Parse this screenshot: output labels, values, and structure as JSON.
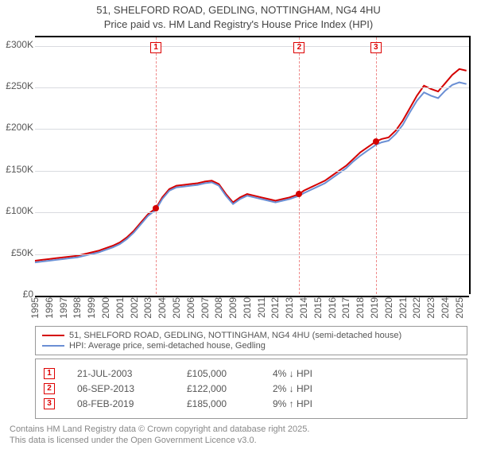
{
  "title_line1": "51, SHELFORD ROAD, GEDLING, NOTTINGHAM, NG4 4HU",
  "title_line2": "Price paid vs. HM Land Registry's House Price Index (HPI)",
  "chart": {
    "type": "line",
    "background_color": "#ffffff",
    "grid_color": "#d9dbe0",
    "axis_color": "#000000",
    "x": {
      "min": 1995,
      "max": 2025.8,
      "ticks": [
        1995,
        1996,
        1997,
        1998,
        1999,
        2000,
        2001,
        2002,
        2003,
        2004,
        2005,
        2006,
        2007,
        2008,
        2009,
        2010,
        2011,
        2012,
        2013,
        2014,
        2015,
        2016,
        2017,
        2018,
        2019,
        2020,
        2021,
        2022,
        2023,
        2024,
        2025
      ]
    },
    "y": {
      "min": 0,
      "max": 310000,
      "ticks": [
        0,
        50000,
        100000,
        150000,
        200000,
        250000,
        300000
      ],
      "tick_labels": [
        "£0",
        "£50K",
        "£100K",
        "£150K",
        "£200K",
        "£250K",
        "£300K"
      ]
    },
    "series": [
      {
        "id": "price_paid",
        "label": "51, SHELFORD ROAD, GEDLING, NOTTINGHAM, NG4 4HU (semi-detached house)",
        "color": "#d40000",
        "line_width": 2,
        "points": [
          [
            1995,
            42000
          ],
          [
            1995.5,
            43000
          ],
          [
            1996,
            44000
          ],
          [
            1996.5,
            45000
          ],
          [
            1997,
            46000
          ],
          [
            1997.5,
            47000
          ],
          [
            1998,
            48000
          ],
          [
            1998.5,
            50000
          ],
          [
            1999,
            52000
          ],
          [
            1999.5,
            54000
          ],
          [
            2000,
            57000
          ],
          [
            2000.5,
            60000
          ],
          [
            2001,
            64000
          ],
          [
            2001.5,
            70000
          ],
          [
            2002,
            78000
          ],
          [
            2002.5,
            88000
          ],
          [
            2003,
            98000
          ],
          [
            2003.55,
            105000
          ],
          [
            2004,
            118000
          ],
          [
            2004.5,
            128000
          ],
          [
            2005,
            132000
          ],
          [
            2005.5,
            133000
          ],
          [
            2006,
            134000
          ],
          [
            2006.5,
            135000
          ],
          [
            2007,
            137000
          ],
          [
            2007.5,
            138000
          ],
          [
            2008,
            134000
          ],
          [
            2008.5,
            122000
          ],
          [
            2009,
            112000
          ],
          [
            2009.5,
            118000
          ],
          [
            2010,
            122000
          ],
          [
            2010.5,
            120000
          ],
          [
            2011,
            118000
          ],
          [
            2011.5,
            116000
          ],
          [
            2012,
            114000
          ],
          [
            2012.5,
            116000
          ],
          [
            2013,
            118000
          ],
          [
            2013.68,
            122000
          ],
          [
            2014,
            126000
          ],
          [
            2014.5,
            130000
          ],
          [
            2015,
            134000
          ],
          [
            2015.5,
            138000
          ],
          [
            2016,
            144000
          ],
          [
            2016.5,
            150000
          ],
          [
            2017,
            156000
          ],
          [
            2017.5,
            164000
          ],
          [
            2018,
            172000
          ],
          [
            2018.5,
            178000
          ],
          [
            2019.1,
            185000
          ],
          [
            2019.5,
            188000
          ],
          [
            2020,
            190000
          ],
          [
            2020.5,
            198000
          ],
          [
            2021,
            210000
          ],
          [
            2021.5,
            225000
          ],
          [
            2022,
            240000
          ],
          [
            2022.5,
            252000
          ],
          [
            2023,
            248000
          ],
          [
            2023.5,
            245000
          ],
          [
            2024,
            255000
          ],
          [
            2024.5,
            265000
          ],
          [
            2025,
            272000
          ],
          [
            2025.5,
            270000
          ]
        ]
      },
      {
        "id": "hpi",
        "label": "HPI: Average price, semi-detached house, Gedling",
        "color": "#6b8fd4",
        "line_width": 2,
        "points": [
          [
            1995,
            40000
          ],
          [
            1995.5,
            41000
          ],
          [
            1996,
            42000
          ],
          [
            1996.5,
            43000
          ],
          [
            1997,
            44000
          ],
          [
            1997.5,
            45000
          ],
          [
            1998,
            46000
          ],
          [
            1998.5,
            48000
          ],
          [
            1999,
            50000
          ],
          [
            1999.5,
            52000
          ],
          [
            2000,
            55000
          ],
          [
            2000.5,
            58000
          ],
          [
            2001,
            62000
          ],
          [
            2001.5,
            68000
          ],
          [
            2002,
            76000
          ],
          [
            2002.5,
            86000
          ],
          [
            2003,
            96000
          ],
          [
            2003.55,
            103000
          ],
          [
            2004,
            116000
          ],
          [
            2004.5,
            126000
          ],
          [
            2005,
            130000
          ],
          [
            2005.5,
            131000
          ],
          [
            2006,
            132000
          ],
          [
            2006.5,
            133000
          ],
          [
            2007,
            135000
          ],
          [
            2007.5,
            136000
          ],
          [
            2008,
            132000
          ],
          [
            2008.5,
            120000
          ],
          [
            2009,
            110000
          ],
          [
            2009.5,
            116000
          ],
          [
            2010,
            120000
          ],
          [
            2010.5,
            118000
          ],
          [
            2011,
            116000
          ],
          [
            2011.5,
            114000
          ],
          [
            2012,
            112000
          ],
          [
            2012.5,
            114000
          ],
          [
            2013,
            116000
          ],
          [
            2013.68,
            120000
          ],
          [
            2014,
            123000
          ],
          [
            2014.5,
            127000
          ],
          [
            2015,
            131000
          ],
          [
            2015.5,
            135000
          ],
          [
            2016,
            141000
          ],
          [
            2016.5,
            147000
          ],
          [
            2017,
            153000
          ],
          [
            2017.5,
            161000
          ],
          [
            2018,
            168000
          ],
          [
            2018.5,
            174000
          ],
          [
            2019.1,
            181000
          ],
          [
            2019.5,
            184000
          ],
          [
            2020,
            186000
          ],
          [
            2020.5,
            194000
          ],
          [
            2021,
            205000
          ],
          [
            2021.5,
            220000
          ],
          [
            2022,
            234000
          ],
          [
            2022.5,
            244000
          ],
          [
            2023,
            240000
          ],
          [
            2023.5,
            237000
          ],
          [
            2024,
            246000
          ],
          [
            2024.5,
            253000
          ],
          [
            2025,
            256000
          ],
          [
            2025.5,
            254000
          ]
        ]
      }
    ],
    "markers": [
      {
        "n": "1",
        "x": 2003.55,
        "date": "21-JUL-2003",
        "price": "£105,000",
        "pct": "4% ↓ HPI",
        "dot_y": 105000
      },
      {
        "n": "2",
        "x": 2013.68,
        "date": "06-SEP-2013",
        "price": "£122,000",
        "pct": "2% ↓ HPI",
        "dot_y": 122000
      },
      {
        "n": "3",
        "x": 2019.1,
        "date": "08-FEB-2019",
        "price": "£185,000",
        "pct": "9% ↑ HPI",
        "dot_y": 185000
      }
    ],
    "marker_color": "#d40000",
    "dot_color": "#d40000"
  },
  "legend": {
    "rows": [
      {
        "color": "#d40000",
        "label_ref": "series.0"
      },
      {
        "color": "#6b8fd4",
        "label_ref": "series.1"
      }
    ]
  },
  "footer_line1": "Contains HM Land Registry data © Crown copyright and database right 2025.",
  "footer_line2": "This data is licensed under the Open Government Licence v3.0."
}
